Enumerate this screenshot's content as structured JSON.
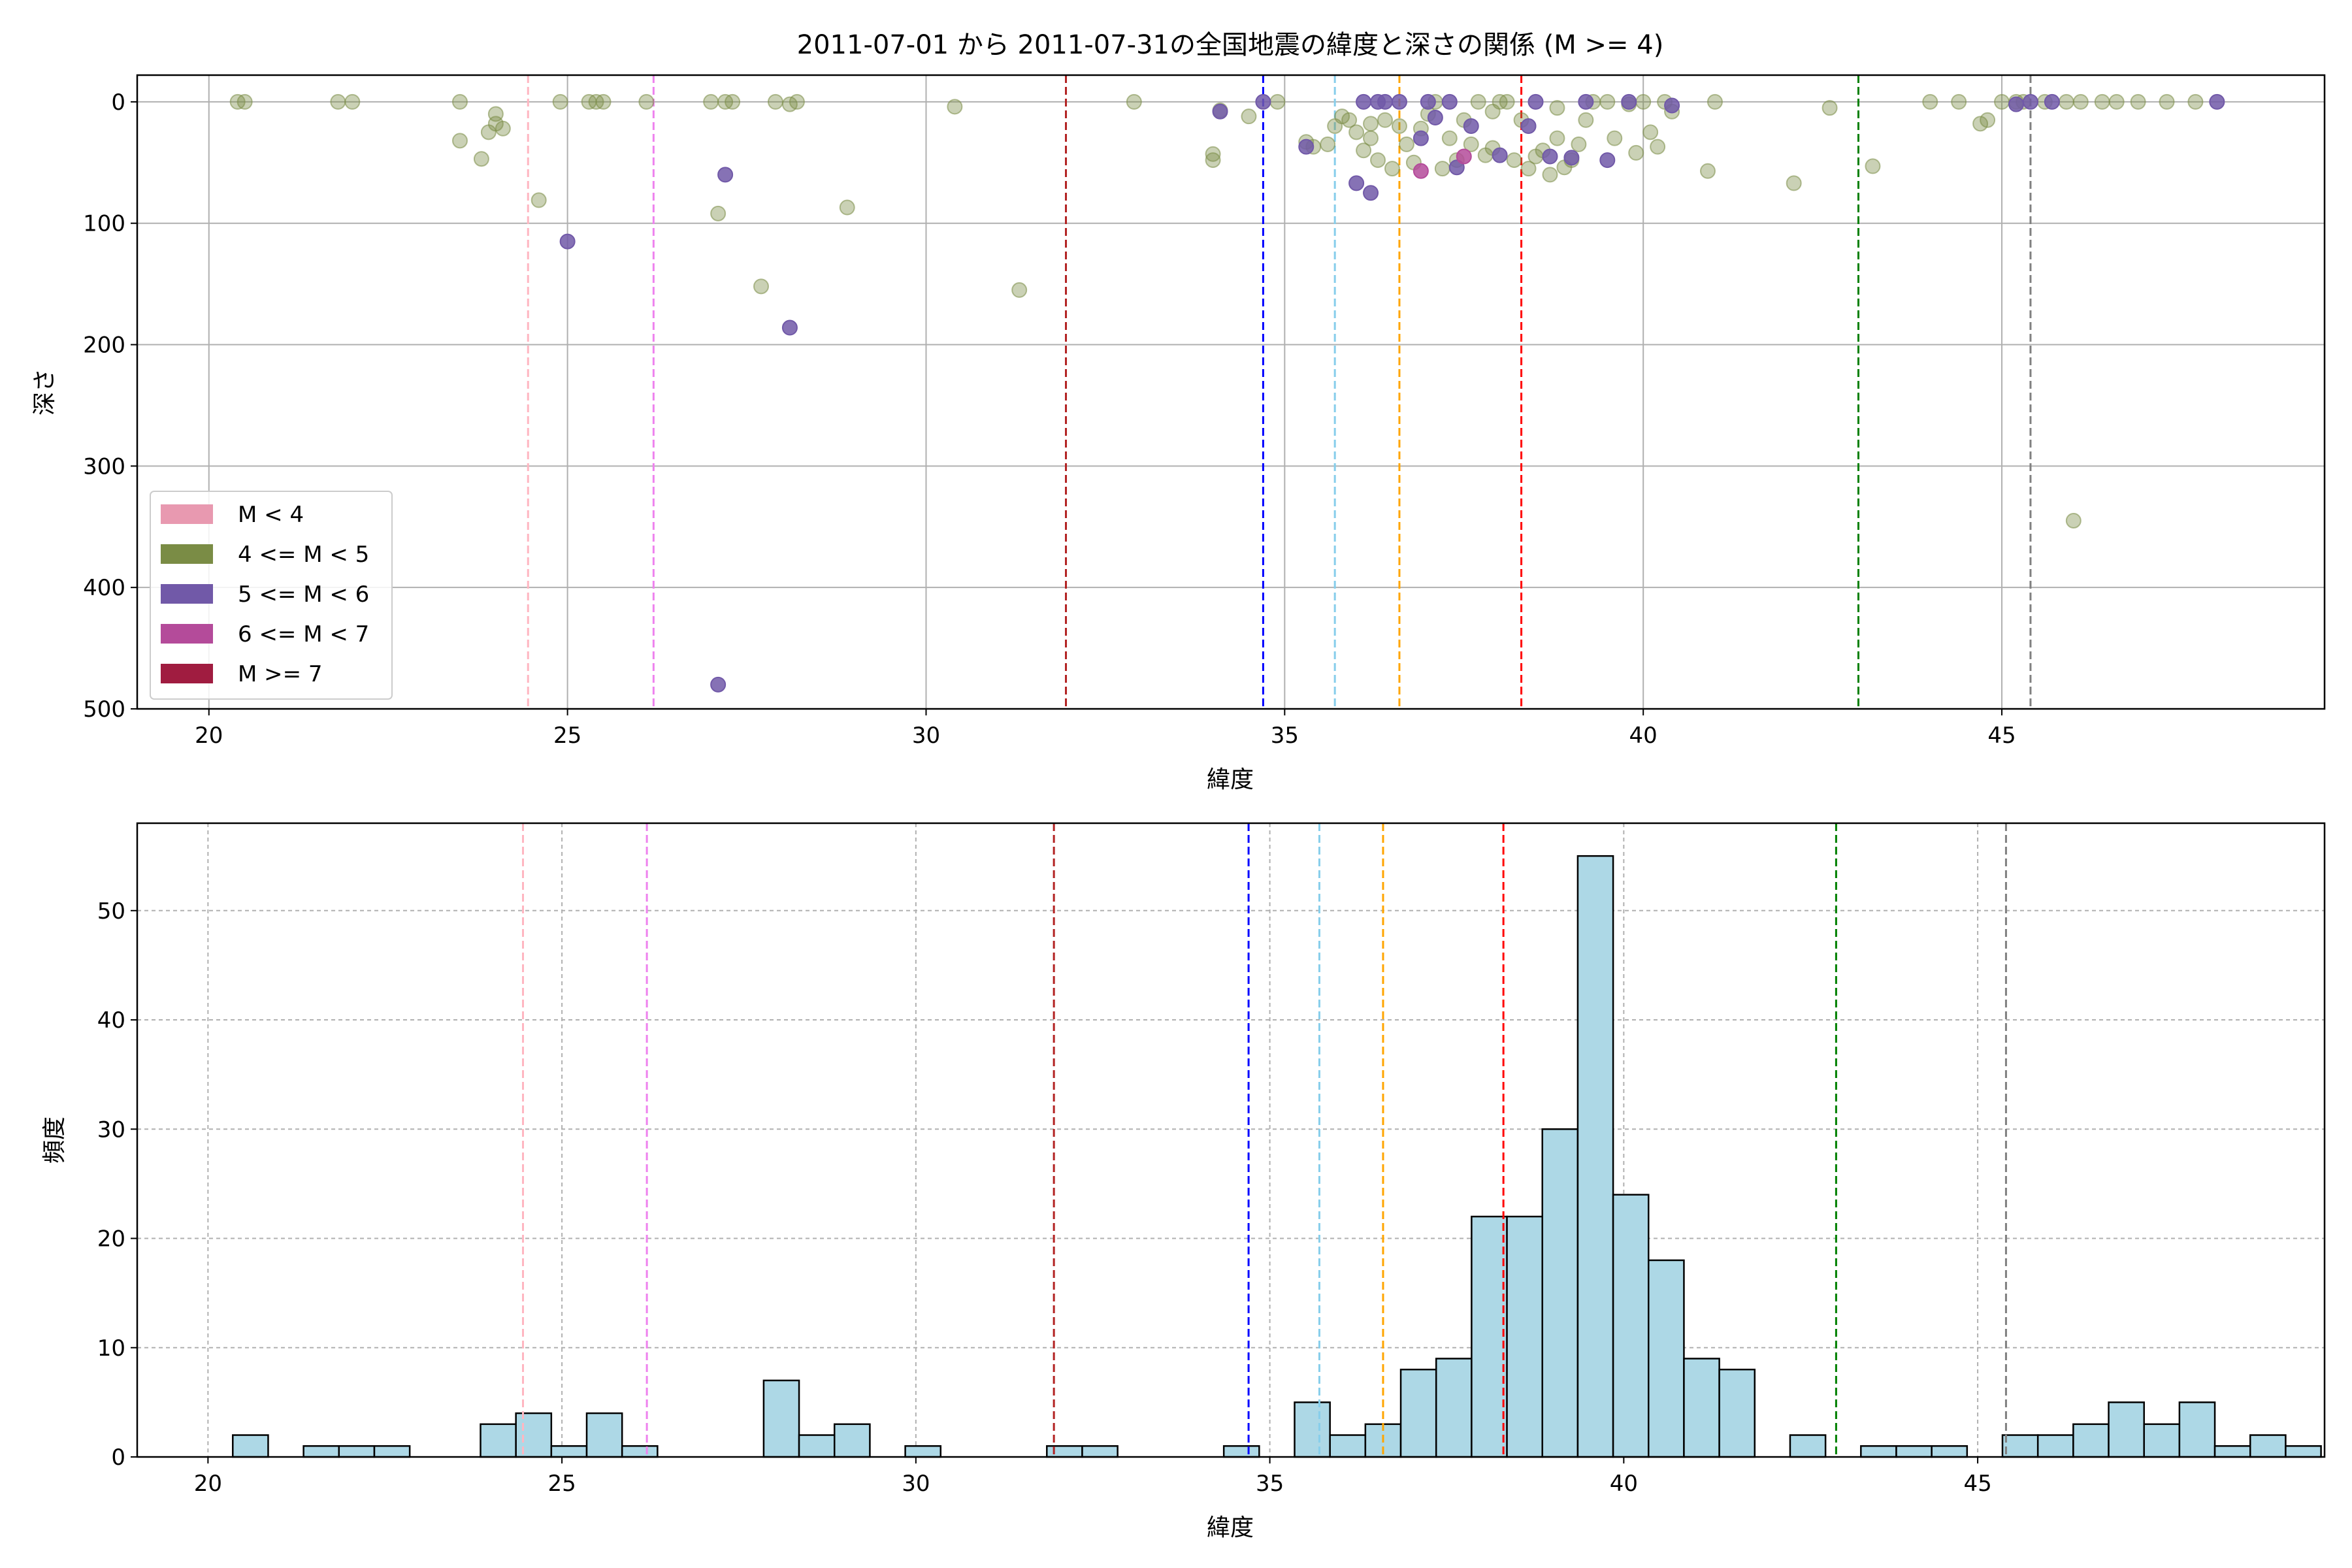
{
  "colors": {
    "mag_lt4": "#e899b0",
    "mag_4_5": "#7a8c45",
    "mag_5_6": "#7159a8",
    "mag_6_7": "#b44b9a",
    "mag_ge7": "#a01c40",
    "hist_fill": "#add8e6",
    "grid": "#b0b0b0"
  },
  "chart_data": [
    {
      "type": "scatter",
      "title": "2011-07-01 から 2011-07-31の全国地震の緯度と深さの関係 (M >= 4)",
      "xlabel": "緯度",
      "ylabel": "深さ",
      "xlim": [
        19,
        49.5
      ],
      "ylim": [
        500,
        -22
      ],
      "y_inverted": true,
      "x_ticks": [
        20,
        25,
        30,
        35,
        40,
        45
      ],
      "y_ticks": [
        0,
        100,
        200,
        300,
        400,
        500
      ],
      "grid": true,
      "legend_position": "lower-left",
      "legend": [
        {
          "label": "M < 4",
          "color": "#e899b0"
        },
        {
          "label": "4 <= M < 5",
          "color": "#7a8c45"
        },
        {
          "label": "5 <= M < 6",
          "color": "#7159a8"
        },
        {
          "label": "6 <= M < 7",
          "color": "#b44b9a"
        },
        {
          "label": "M >= 7",
          "color": "#a01c40"
        }
      ],
      "vlines": [
        {
          "x": 24.45,
          "color": "#ffb6c1"
        },
        {
          "x": 26.2,
          "color": "#ee82ee"
        },
        {
          "x": 31.95,
          "color": "#b22222"
        },
        {
          "x": 34.7,
          "color": "#0000ff"
        },
        {
          "x": 35.7,
          "color": "#87ceeb"
        },
        {
          "x": 36.6,
          "color": "#ffa500"
        },
        {
          "x": 38.3,
          "color": "#ff0000"
        },
        {
          "x": 43.0,
          "color": "#008000"
        },
        {
          "x": 45.4,
          "color": "#808080"
        }
      ],
      "series": [
        {
          "name": "4 <= M < 5",
          "color": "#7a8c45",
          "alpha": 0.4,
          "points": [
            [
              20.4,
              0
            ],
            [
              20.5,
              0
            ],
            [
              21.8,
              0
            ],
            [
              22.0,
              0
            ],
            [
              23.5,
              0
            ],
            [
              23.5,
              32
            ],
            [
              23.8,
              47
            ],
            [
              23.9,
              25
            ],
            [
              24.0,
              18
            ],
            [
              24.0,
              10
            ],
            [
              24.1,
              22
            ],
            [
              24.6,
              81
            ],
            [
              24.9,
              0
            ],
            [
              25.3,
              0
            ],
            [
              25.4,
              0
            ],
            [
              25.5,
              0
            ],
            [
              26.1,
              0
            ],
            [
              27.0,
              0
            ],
            [
              27.2,
              0
            ],
            [
              27.3,
              0
            ],
            [
              27.1,
              92
            ],
            [
              27.7,
              152
            ],
            [
              27.9,
              0
            ],
            [
              28.1,
              2
            ],
            [
              28.2,
              0
            ],
            [
              28.9,
              87
            ],
            [
              30.4,
              4
            ],
            [
              31.3,
              155
            ],
            [
              32.9,
              0
            ],
            [
              34.0,
              43
            ],
            [
              34.0,
              48
            ],
            [
              34.1,
              7
            ],
            [
              34.5,
              12
            ],
            [
              34.9,
              0
            ],
            [
              35.3,
              33
            ],
            [
              35.4,
              37
            ],
            [
              35.6,
              35
            ],
            [
              35.8,
              12
            ],
            [
              35.9,
              15
            ],
            [
              36.0,
              25
            ],
            [
              36.1,
              40
            ],
            [
              36.2,
              30
            ],
            [
              36.3,
              48
            ],
            [
              36.4,
              15
            ],
            [
              36.5,
              55
            ],
            [
              36.6,
              20
            ],
            [
              36.7,
              35
            ],
            [
              36.8,
              50
            ],
            [
              36.9,
              22
            ],
            [
              37.0,
              10
            ],
            [
              37.1,
              0
            ],
            [
              37.2,
              55
            ],
            [
              37.3,
              30
            ],
            [
              37.4,
              48
            ],
            [
              37.5,
              15
            ],
            [
              37.6,
              35
            ],
            [
              37.7,
              0
            ],
            [
              37.8,
              44
            ],
            [
              37.9,
              38
            ],
            [
              38.0,
              0
            ],
            [
              38.1,
              0
            ],
            [
              38.2,
              48
            ],
            [
              38.3,
              15
            ],
            [
              38.4,
              55
            ],
            [
              38.5,
              45
            ],
            [
              38.6,
              40
            ],
            [
              38.7,
              60
            ],
            [
              38.8,
              30
            ],
            [
              38.9,
              54
            ],
            [
              39.0,
              48
            ],
            [
              39.1,
              35
            ],
            [
              39.2,
              15
            ],
            [
              39.3,
              0
            ],
            [
              39.5,
              0
            ],
            [
              39.6,
              30
            ],
            [
              39.8,
              2
            ],
            [
              39.9,
              42
            ],
            [
              40.0,
              0
            ],
            [
              40.1,
              25
            ],
            [
              40.2,
              37
            ],
            [
              40.3,
              0
            ],
            [
              40.4,
              8
            ],
            [
              40.9,
              57
            ],
            [
              41.0,
              0
            ],
            [
              42.1,
              67
            ],
            [
              42.6,
              5
            ],
            [
              43.2,
              53
            ],
            [
              44.0,
              0
            ],
            [
              44.4,
              0
            ],
            [
              44.7,
              18
            ],
            [
              44.8,
              15
            ],
            [
              45.0,
              0
            ],
            [
              45.2,
              0
            ],
            [
              45.3,
              0
            ],
            [
              45.6,
              0
            ],
            [
              45.9,
              0
            ],
            [
              46.0,
              345
            ],
            [
              46.1,
              0
            ],
            [
              46.4,
              0
            ],
            [
              46.6,
              0
            ],
            [
              46.9,
              0
            ],
            [
              47.3,
              0
            ],
            [
              47.7,
              0
            ],
            [
              38.8,
              5
            ],
            [
              37.9,
              8
            ],
            [
              36.2,
              18
            ],
            [
              35.7,
              20
            ]
          ]
        },
        {
          "name": "5 <= M < 6",
          "color": "#7159a8",
          "alpha": 0.85,
          "points": [
            [
              25.0,
              115
            ],
            [
              27.1,
              480
            ],
            [
              27.2,
              60
            ],
            [
              28.1,
              186
            ],
            [
              34.7,
              0
            ],
            [
              35.3,
              37
            ],
            [
              36.0,
              67
            ],
            [
              36.2,
              75
            ],
            [
              36.1,
              0
            ],
            [
              36.4,
              0
            ],
            [
              36.6,
              0
            ],
            [
              36.9,
              30
            ],
            [
              37.0,
              0
            ],
            [
              37.1,
              13
            ],
            [
              37.3,
              0
            ],
            [
              37.4,
              54
            ],
            [
              37.6,
              20
            ],
            [
              38.0,
              44
            ],
            [
              38.4,
              20
            ],
            [
              38.5,
              0
            ],
            [
              38.7,
              45
            ],
            [
              39.0,
              46
            ],
            [
              39.2,
              0
            ],
            [
              39.5,
              48
            ],
            [
              39.8,
              0
            ],
            [
              40.4,
              3
            ],
            [
              45.2,
              2
            ],
            [
              45.4,
              0
            ],
            [
              45.7,
              0
            ],
            [
              48.0,
              0
            ],
            [
              34.1,
              8
            ],
            [
              36.3,
              0
            ]
          ]
        },
        {
          "name": "6 <= M < 7",
          "color": "#b44b9a",
          "alpha": 0.85,
          "points": [
            [
              36.9,
              57
            ],
            [
              37.5,
              45
            ]
          ]
        }
      ]
    },
    {
      "type": "bar",
      "title": "",
      "xlabel": "緯度",
      "ylabel": "頻度",
      "xlim": [
        19,
        49.9
      ],
      "ylim": [
        0,
        58
      ],
      "x_ticks": [
        20,
        25,
        30,
        35,
        40,
        45
      ],
      "y_ticks": [
        0,
        10,
        20,
        30,
        40,
        50
      ],
      "grid": true,
      "bin_start": 20.35,
      "bin_width": 0.5,
      "values": [
        2,
        0,
        1,
        1,
        1,
        0,
        0,
        3,
        4,
        1,
        4,
        1,
        0,
        0,
        0,
        7,
        2,
        3,
        0,
        1,
        0,
        0,
        0,
        1,
        1,
        0,
        0,
        0,
        1,
        0,
        5,
        2,
        3,
        8,
        9,
        22,
        22,
        30,
        55,
        24,
        18,
        9,
        8,
        0,
        2,
        0,
        1,
        1,
        1,
        0,
        2,
        2,
        3,
        5,
        3,
        5,
        1,
        2,
        1
      ],
      "vlines": [
        {
          "x": 24.45,
          "color": "#ffb6c1"
        },
        {
          "x": 26.2,
          "color": "#ee82ee"
        },
        {
          "x": 31.95,
          "color": "#b22222"
        },
        {
          "x": 34.7,
          "color": "#0000ff"
        },
        {
          "x": 35.7,
          "color": "#87ceeb"
        },
        {
          "x": 36.6,
          "color": "#ffa500"
        },
        {
          "x": 38.3,
          "color": "#ff0000"
        },
        {
          "x": 43.0,
          "color": "#008000"
        },
        {
          "x": 45.4,
          "color": "#808080"
        }
      ]
    }
  ]
}
